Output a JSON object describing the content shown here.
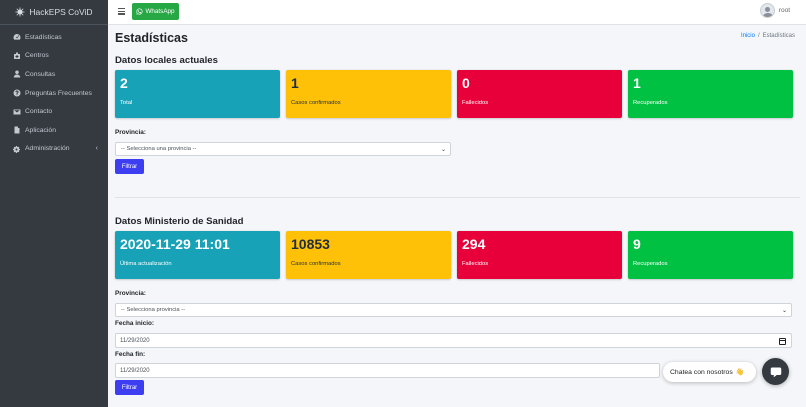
{
  "brand": {
    "name": "HackEPS CoViD"
  },
  "sidebar": {
    "items": [
      {
        "label": "Estadísticas",
        "icon": "dashboard-icon"
      },
      {
        "label": "Centros",
        "icon": "hospital-icon"
      },
      {
        "label": "Consultas",
        "icon": "user-doctor-icon"
      },
      {
        "label": "Preguntas Frecuentes",
        "icon": "question-circle-icon"
      },
      {
        "label": "Contacto",
        "icon": "envelope-icon"
      },
      {
        "label": "Aplicación",
        "icon": "file-icon"
      },
      {
        "label": "Administración",
        "icon": "gears-icon"
      }
    ]
  },
  "topbar": {
    "whatsapp_label": "WhatsApp",
    "user_name": "root"
  },
  "page": {
    "title": "Estadísticas",
    "breadcrumb": {
      "home": "Inicio",
      "current": "Estadísticas"
    }
  },
  "local": {
    "title": "Datos locales actuales",
    "boxes": [
      {
        "value": "2",
        "label": "Total"
      },
      {
        "value": "1",
        "label": "Casos confirmados"
      },
      {
        "value": "0",
        "label": "Fallecidos"
      },
      {
        "value": "1",
        "label": "Recuperados"
      }
    ],
    "province_label": "Provincia:",
    "province_value": "-- Selecciona una provincia --",
    "filter_label": "Filtrar"
  },
  "ministry": {
    "title": "Datos Ministerio de Sanidad",
    "boxes": [
      {
        "value": "2020-11-29 11:01",
        "label": "Última actualización"
      },
      {
        "value": "10853",
        "label": "Casos confirmados"
      },
      {
        "value": "294",
        "label": "Fallecidos"
      },
      {
        "value": "9",
        "label": "Recuperados"
      }
    ],
    "province_label": "Provincia:",
    "province_value": "-- Selecciona provincia --",
    "start_label": "Fecha inicio:",
    "start_value": "11/29/2020",
    "end_label": "Fecha fin:",
    "end_value": "11/29/2020",
    "filter_label": "Filtrar"
  },
  "chat": {
    "label": "Chatea con nosotros",
    "emoji": "👋"
  },
  "colors": {
    "info": "#17a2b8",
    "warning": "#ffc107",
    "danger": "#e8003a",
    "success": "#00c142",
    "primary": "#3d3df2",
    "sidebar": "#343a40"
  }
}
